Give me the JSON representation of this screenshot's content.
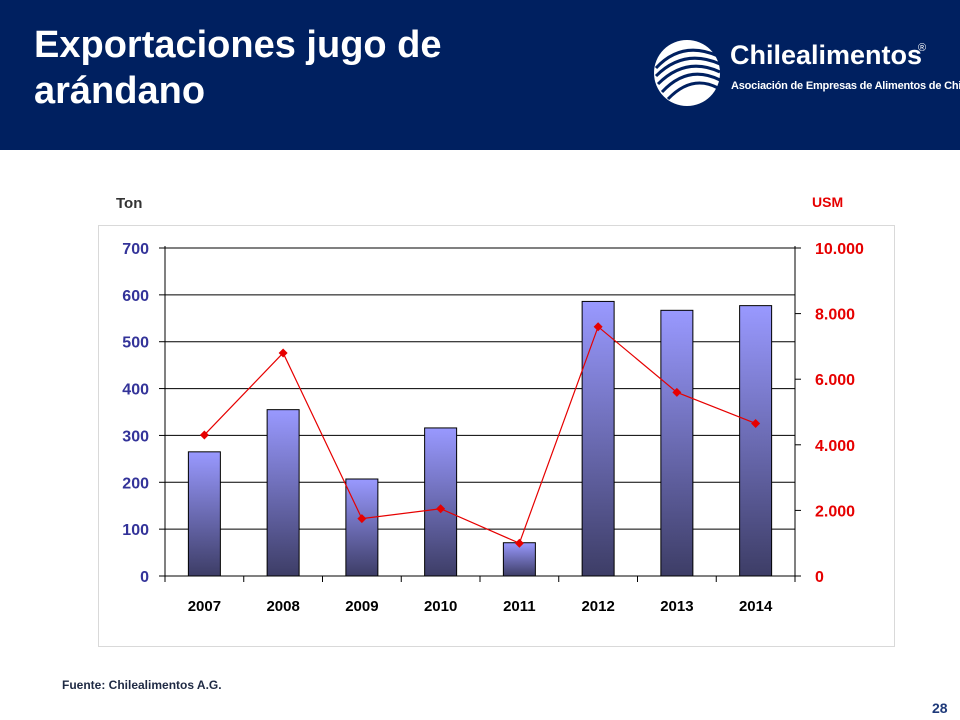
{
  "slide": {
    "title": "Exportaciones jugo de arándano",
    "source": "Fuente: Chilealimentos A.G.",
    "page_number": "28"
  },
  "logo": {
    "name": "Chilealimentos",
    "registered": "®",
    "subtitle": "Asociación de Empresas de Alimentos de Chile"
  },
  "colors": {
    "header": "#002060",
    "bar_top": "#9999ff",
    "bar_bottom": "#3d3d66",
    "line": "#e60000",
    "left_axis_text": "#333399",
    "right_axis_text": "#e60000"
  },
  "chart_data": {
    "type": "bar",
    "categories": [
      "2007",
      "2008",
      "2009",
      "2010",
      "2011",
      "2012",
      "2013",
      "2014"
    ],
    "series": [
      {
        "values": [
          265,
          355,
          207,
          316,
          71,
          586,
          567,
          577
        ],
        "axis": "left",
        "type": "bar"
      },
      {
        "values": [
          4300,
          6800,
          1750,
          2050,
          1000,
          7600,
          5600,
          4650
        ],
        "axis": "right",
        "type": "line"
      }
    ],
    "y_left": {
      "label": "Ton",
      "ylim": [
        0,
        700
      ],
      "ticks": [
        "0",
        "100",
        "200",
        "300",
        "400",
        "500",
        "600",
        "700"
      ]
    },
    "y_right": {
      "label": "USM",
      "ylim": [
        0,
        10000
      ],
      "ticks": [
        "0",
        "2.000",
        "4.000",
        "6.000",
        "8.000",
        "10.000"
      ]
    },
    "grid": true,
    "legend": "none"
  }
}
